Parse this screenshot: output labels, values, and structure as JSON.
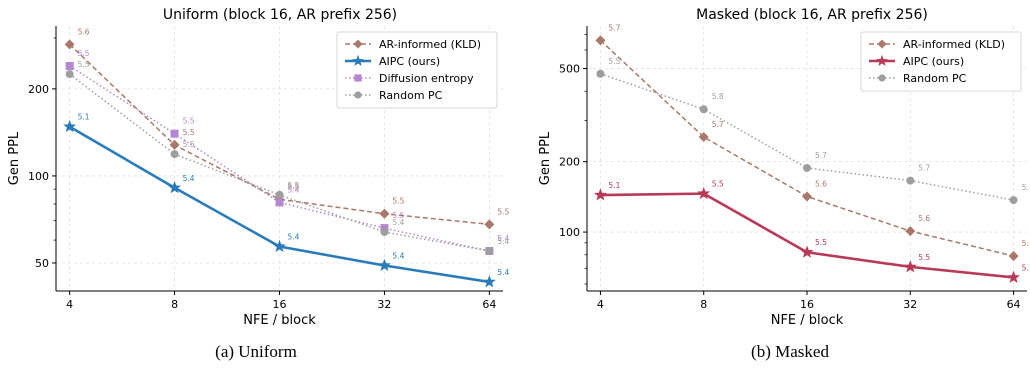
{
  "chart_data": [
    {
      "type": "line",
      "title": "Uniform (block 16, AR prefix 256)",
      "caption": "(a) Uniform",
      "xlabel": "NFE / block",
      "ylabel": "Gen PPL",
      "x": [
        4,
        8,
        16,
        32,
        64
      ],
      "x_scale": "log2",
      "y_scale": "log",
      "ylim": [
        40,
        330
      ],
      "yticks": [
        50,
        100,
        200
      ],
      "grid": true,
      "legend": "top-right",
      "series": [
        {
          "name": "AR-informed (KLD)",
          "values": [
            285,
            128,
            83,
            74,
            68
          ],
          "labels": [
            "5.6",
            "5.5",
            "5.5",
            "5.5",
            "5.5"
          ],
          "color": "#a8786a",
          "marker": "diamond",
          "line": "dashed"
        },
        {
          "name": "AIPC (ours)",
          "values": [
            148,
            91,
            57,
            49,
            43
          ],
          "labels": [
            "5.1",
            "5.4",
            "5.4",
            "5.4",
            "5.4"
          ],
          "color": "#2b7bba",
          "marker": "star",
          "line": "solid"
        },
        {
          "name": "Diffusion entropy",
          "values": [
            240,
            140,
            81,
            66,
            55
          ],
          "labels": [
            "5.5",
            "5.5",
            "5.4",
            "5.5",
            "5.4"
          ],
          "color": "#b487d0",
          "marker": "square",
          "line": "dotted"
        },
        {
          "name": "Random PC",
          "values": [
            225,
            119,
            86,
            64,
            55
          ],
          "labels": [
            "5.5",
            "5.5",
            "5.5",
            "5.4",
            "5.4"
          ],
          "color": "#9e9e9e",
          "marker": "circle",
          "line": "dotted"
        }
      ]
    },
    {
      "type": "line",
      "title": "Masked (block 16, AR prefix 256)",
      "caption": "(b) Masked",
      "xlabel": "NFE / block",
      "ylabel": "Gen PPL",
      "x": [
        4,
        8,
        16,
        32,
        64
      ],
      "x_scale": "log2",
      "y_scale": "log",
      "ylim": [
        56,
        760
      ],
      "yticks": [
        100,
        200,
        500
      ],
      "grid": true,
      "legend": "top-right",
      "series": [
        {
          "name": "AR-informed (KLD)",
          "values": [
            660,
            255,
            142,
            101,
            79
          ],
          "labels": [
            "5.7",
            "5.7",
            "5.6",
            "5.6",
            "5."
          ],
          "color": "#a8786a",
          "marker": "diamond",
          "line": "dashed"
        },
        {
          "name": "AIPC (ours)",
          "values": [
            144,
            146,
            82,
            71,
            64
          ],
          "labels": [
            "5.1",
            "5.5",
            "5.5",
            "5.5",
            "5."
          ],
          "color": "#b83a57",
          "marker": "star",
          "line": "solid"
        },
        {
          "name": "Random PC",
          "values": [
            475,
            335,
            188,
            166,
            137
          ],
          "labels": [
            "5.5",
            "5.8",
            "5.7",
            "5.7",
            "5."
          ],
          "color": "#9e9e9e",
          "marker": "circle",
          "line": "dotted"
        }
      ]
    }
  ]
}
